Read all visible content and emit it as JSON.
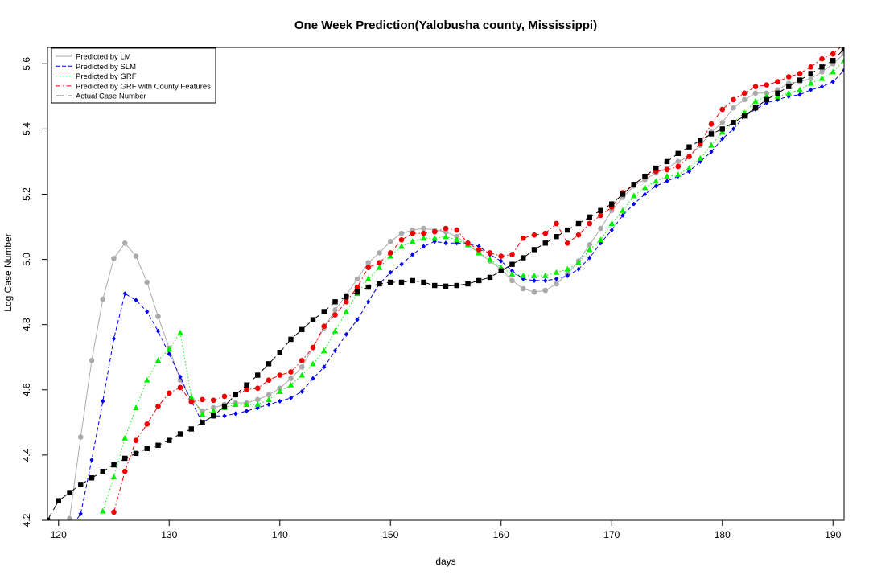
{
  "chart_data": {
    "type": "line",
    "title": "One Week Prediction(Yalobusha county, Mississippi)",
    "xlabel": "days",
    "ylabel": "Log Case Number",
    "xlim": [
      119,
      191
    ],
    "ylim": [
      4.2,
      5.65
    ],
    "xticks": [
      120,
      130,
      140,
      150,
      160,
      170,
      180,
      190
    ],
    "yticks": [
      4.2,
      4.4,
      4.6,
      4.8,
      5.0,
      5.2,
      5.4,
      5.6
    ],
    "grid": false,
    "legend_position": "top-left",
    "series": [
      {
        "name": "Predicted by LM",
        "color": "#aaaaaa",
        "line": "solid",
        "marker": "circle",
        "x": [
          120,
          121,
          122,
          123,
          124,
          125,
          126,
          127,
          128,
          129,
          130,
          131,
          132,
          133,
          134,
          135,
          136,
          137,
          138,
          139,
          140,
          141,
          142,
          143,
          144,
          145,
          146,
          147,
          148,
          149,
          150,
          151,
          152,
          153,
          154,
          155,
          156,
          157,
          158,
          159,
          160,
          161,
          162,
          163,
          164,
          165,
          166,
          167,
          168,
          169,
          170,
          171,
          172,
          173,
          174,
          175,
          176,
          177,
          178,
          179,
          180,
          181,
          182,
          183,
          184,
          185,
          186,
          187,
          188,
          189,
          190,
          191
        ],
        "values": [
          4.12,
          4.205,
          4.455,
          4.69,
          4.878,
          5.003,
          5.05,
          5.01,
          4.93,
          4.825,
          4.728,
          4.63,
          4.57,
          4.535,
          4.545,
          4.555,
          4.56,
          4.56,
          4.57,
          4.585,
          4.605,
          4.635,
          4.67,
          4.73,
          4.79,
          4.845,
          4.89,
          4.94,
          4.99,
          5.02,
          5.055,
          5.08,
          5.09,
          5.095,
          5.09,
          5.085,
          5.07,
          5.045,
          5.02,
          4.995,
          4.97,
          4.935,
          4.91,
          4.9,
          4.905,
          4.925,
          4.955,
          4.995,
          5.045,
          5.095,
          5.15,
          5.19,
          5.225,
          5.245,
          5.265,
          5.28,
          5.3,
          5.315,
          5.35,
          5.39,
          5.42,
          5.465,
          5.49,
          5.51,
          5.51,
          5.52,
          5.54,
          5.545,
          5.555,
          5.575,
          5.6,
          5.63
        ]
      },
      {
        "name": "Predicted by SLM",
        "color": "#0000ee",
        "line": "dashed",
        "marker": "diamond",
        "x": [
          120,
          121,
          122,
          123,
          124,
          125,
          126,
          127,
          128,
          129,
          130,
          131,
          132,
          133,
          134,
          135,
          136,
          137,
          138,
          139,
          140,
          141,
          142,
          143,
          144,
          145,
          146,
          147,
          148,
          149,
          150,
          151,
          152,
          153,
          154,
          155,
          156,
          157,
          158,
          159,
          160,
          161,
          162,
          163,
          164,
          165,
          166,
          167,
          168,
          169,
          170,
          171,
          172,
          173,
          174,
          175,
          176,
          177,
          178,
          179,
          180,
          181,
          182,
          183,
          184,
          185,
          186,
          187,
          188,
          189,
          190,
          191
        ],
        "values": [
          4.08,
          4.17,
          4.22,
          4.385,
          4.565,
          4.757,
          4.895,
          4.875,
          4.84,
          4.78,
          4.71,
          4.64,
          4.565,
          4.5,
          4.52,
          4.52,
          4.527,
          4.535,
          4.545,
          4.555,
          4.565,
          4.575,
          4.595,
          4.635,
          4.67,
          4.72,
          4.77,
          4.815,
          4.87,
          4.925,
          4.96,
          4.985,
          5.015,
          5.04,
          5.055,
          5.05,
          5.05,
          5.05,
          5.04,
          5.015,
          4.995,
          4.965,
          4.94,
          4.935,
          4.935,
          4.94,
          4.95,
          4.97,
          5.005,
          5.05,
          5.09,
          5.135,
          5.17,
          5.2,
          5.225,
          5.24,
          5.255,
          5.27,
          5.3,
          5.33,
          5.37,
          5.4,
          5.44,
          5.46,
          5.48,
          5.49,
          5.5,
          5.505,
          5.52,
          5.53,
          5.545,
          5.58
        ]
      },
      {
        "name": "Predicted by GRF",
        "color": "#00ee00",
        "line": "dotted",
        "marker": "triangle",
        "x": [
          124,
          125,
          126,
          127,
          128,
          129,
          130,
          131,
          132,
          133,
          134,
          135,
          136,
          137,
          138,
          139,
          140,
          141,
          142,
          143,
          144,
          145,
          146,
          147,
          148,
          149,
          150,
          151,
          152,
          153,
          154,
          155,
          156,
          157,
          158,
          159,
          160,
          161,
          162,
          163,
          164,
          165,
          166,
          167,
          168,
          169,
          170,
          171,
          172,
          173,
          174,
          175,
          176,
          177,
          178,
          179,
          180,
          181,
          182,
          183,
          184,
          185,
          186,
          187,
          188,
          189,
          190,
          191
        ],
        "values": [
          4.228,
          4.333,
          4.452,
          4.545,
          4.63,
          4.69,
          4.725,
          4.775,
          4.578,
          4.525,
          4.535,
          4.545,
          4.555,
          4.555,
          4.555,
          4.57,
          4.595,
          4.615,
          4.645,
          4.68,
          4.72,
          4.78,
          4.84,
          4.895,
          4.94,
          4.975,
          5.01,
          5.04,
          5.055,
          5.065,
          5.065,
          5.07,
          5.06,
          5.045,
          5.02,
          5.0,
          4.975,
          4.955,
          4.95,
          4.95,
          4.95,
          4.96,
          4.97,
          4.99,
          5.03,
          5.06,
          5.11,
          5.15,
          5.195,
          5.22,
          5.24,
          5.255,
          5.26,
          5.28,
          5.31,
          5.35,
          5.39,
          5.42,
          5.45,
          5.485,
          5.5,
          5.5,
          5.51,
          5.52,
          5.54,
          5.555,
          5.575,
          5.61
        ]
      },
      {
        "name": "Predicted by GRF with County Features",
        "color": "#ee0000",
        "line": "dashdot",
        "marker": "circle",
        "x": [
          125,
          126,
          127,
          128,
          129,
          130,
          131,
          132,
          133,
          134,
          135,
          136,
          137,
          138,
          139,
          140,
          141,
          142,
          143,
          144,
          145,
          146,
          147,
          148,
          149,
          150,
          151,
          152,
          153,
          154,
          155,
          156,
          157,
          158,
          159,
          160,
          161,
          162,
          163,
          164,
          165,
          166,
          167,
          168,
          169,
          170,
          171,
          172,
          173,
          174,
          175,
          176,
          177,
          178,
          179,
          180,
          181,
          182,
          183,
          184,
          185,
          186,
          187,
          188,
          189,
          190,
          191
        ],
        "values": [
          4.225,
          4.35,
          4.445,
          4.495,
          4.55,
          4.59,
          4.607,
          4.563,
          4.57,
          4.568,
          4.58,
          4.585,
          4.6,
          4.605,
          4.63,
          4.645,
          4.655,
          4.69,
          4.73,
          4.795,
          4.83,
          4.87,
          4.915,
          4.975,
          4.99,
          5.02,
          5.06,
          5.08,
          5.08,
          5.085,
          5.095,
          5.09,
          5.05,
          5.03,
          5.02,
          5.01,
          5.015,
          5.065,
          5.075,
          5.08,
          5.11,
          5.05,
          5.075,
          5.11,
          5.135,
          5.16,
          5.205,
          5.23,
          5.255,
          5.27,
          5.275,
          5.285,
          5.315,
          5.355,
          5.415,
          5.46,
          5.49,
          5.51,
          5.53,
          5.535,
          5.545,
          5.56,
          5.57,
          5.59,
          5.615,
          5.63,
          5.66
        ]
      },
      {
        "name": "Actual Case Number",
        "color": "#000000",
        "line": "longdash",
        "marker": "square",
        "x": [
          119,
          120,
          121,
          122,
          123,
          124,
          125,
          126,
          127,
          128,
          129,
          130,
          131,
          132,
          133,
          134,
          135,
          136,
          137,
          138,
          139,
          140,
          141,
          142,
          143,
          144,
          145,
          146,
          147,
          148,
          149,
          150,
          151,
          152,
          153,
          154,
          155,
          156,
          157,
          158,
          159,
          160,
          161,
          162,
          163,
          164,
          165,
          166,
          167,
          168,
          169,
          170,
          171,
          172,
          173,
          174,
          175,
          176,
          177,
          178,
          179,
          180,
          181,
          182,
          183,
          184,
          185,
          186,
          187,
          188,
          189,
          190,
          191
        ],
        "values": [
          4.2,
          4.26,
          4.285,
          4.31,
          4.33,
          4.35,
          4.37,
          4.39,
          4.405,
          4.42,
          4.43,
          4.445,
          4.465,
          4.48,
          4.5,
          4.52,
          4.55,
          4.585,
          4.615,
          4.645,
          4.68,
          4.715,
          4.755,
          4.785,
          4.815,
          4.84,
          4.87,
          4.885,
          4.9,
          4.915,
          4.925,
          4.93,
          4.93,
          4.935,
          4.93,
          4.92,
          4.918,
          4.92,
          4.925,
          4.935,
          4.945,
          4.965,
          4.985,
          5.005,
          5.03,
          5.05,
          5.07,
          5.09,
          5.11,
          5.13,
          5.15,
          5.17,
          5.2,
          5.23,
          5.255,
          5.28,
          5.3,
          5.325,
          5.345,
          5.365,
          5.385,
          5.4,
          5.42,
          5.44,
          5.465,
          5.49,
          5.51,
          5.53,
          5.55,
          5.57,
          5.59,
          5.61,
          5.645
        ]
      }
    ]
  }
}
